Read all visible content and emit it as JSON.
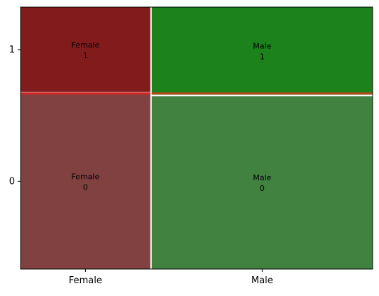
{
  "chart_data": {
    "type": "mosaic",
    "title": "",
    "xlabel": "",
    "ylabel": "",
    "x_categories": [
      "Female",
      "Male"
    ],
    "y_categories": [
      "0",
      "1"
    ],
    "x_tick_labels": [
      "Female",
      "Male"
    ],
    "y_tick_labels": [
      "0",
      "1"
    ],
    "column_proportions": [
      0.37,
      0.63
    ],
    "tiles": [
      {
        "x": "Female",
        "y": "0",
        "label_line1": "Female",
        "label_line2": "0",
        "proportion_within_x": 0.67,
        "color": "#824141"
      },
      {
        "x": "Female",
        "y": "1",
        "label_line1": "Female",
        "label_line2": "1",
        "proportion_within_x": 0.33,
        "color": "#821c1c"
      },
      {
        "x": "Male",
        "y": "0",
        "label_line1": "Male",
        "label_line2": "0",
        "proportion_within_x": 0.66,
        "color": "#418241"
      },
      {
        "x": "Male",
        "y": "1",
        "label_line1": "Male",
        "label_line2": "1",
        "proportion_within_x": 0.34,
        "color": "#1c821c"
      }
    ],
    "reference_lines": [
      {
        "y_proportion": 0.67,
        "color": "#d62728",
        "x_range": [
          "Female",
          "Female"
        ]
      },
      {
        "y_proportion": 0.67,
        "color": "#b34a1a",
        "x_range": [
          "Male",
          "Male"
        ]
      }
    ],
    "grid": false,
    "legend": "none"
  }
}
